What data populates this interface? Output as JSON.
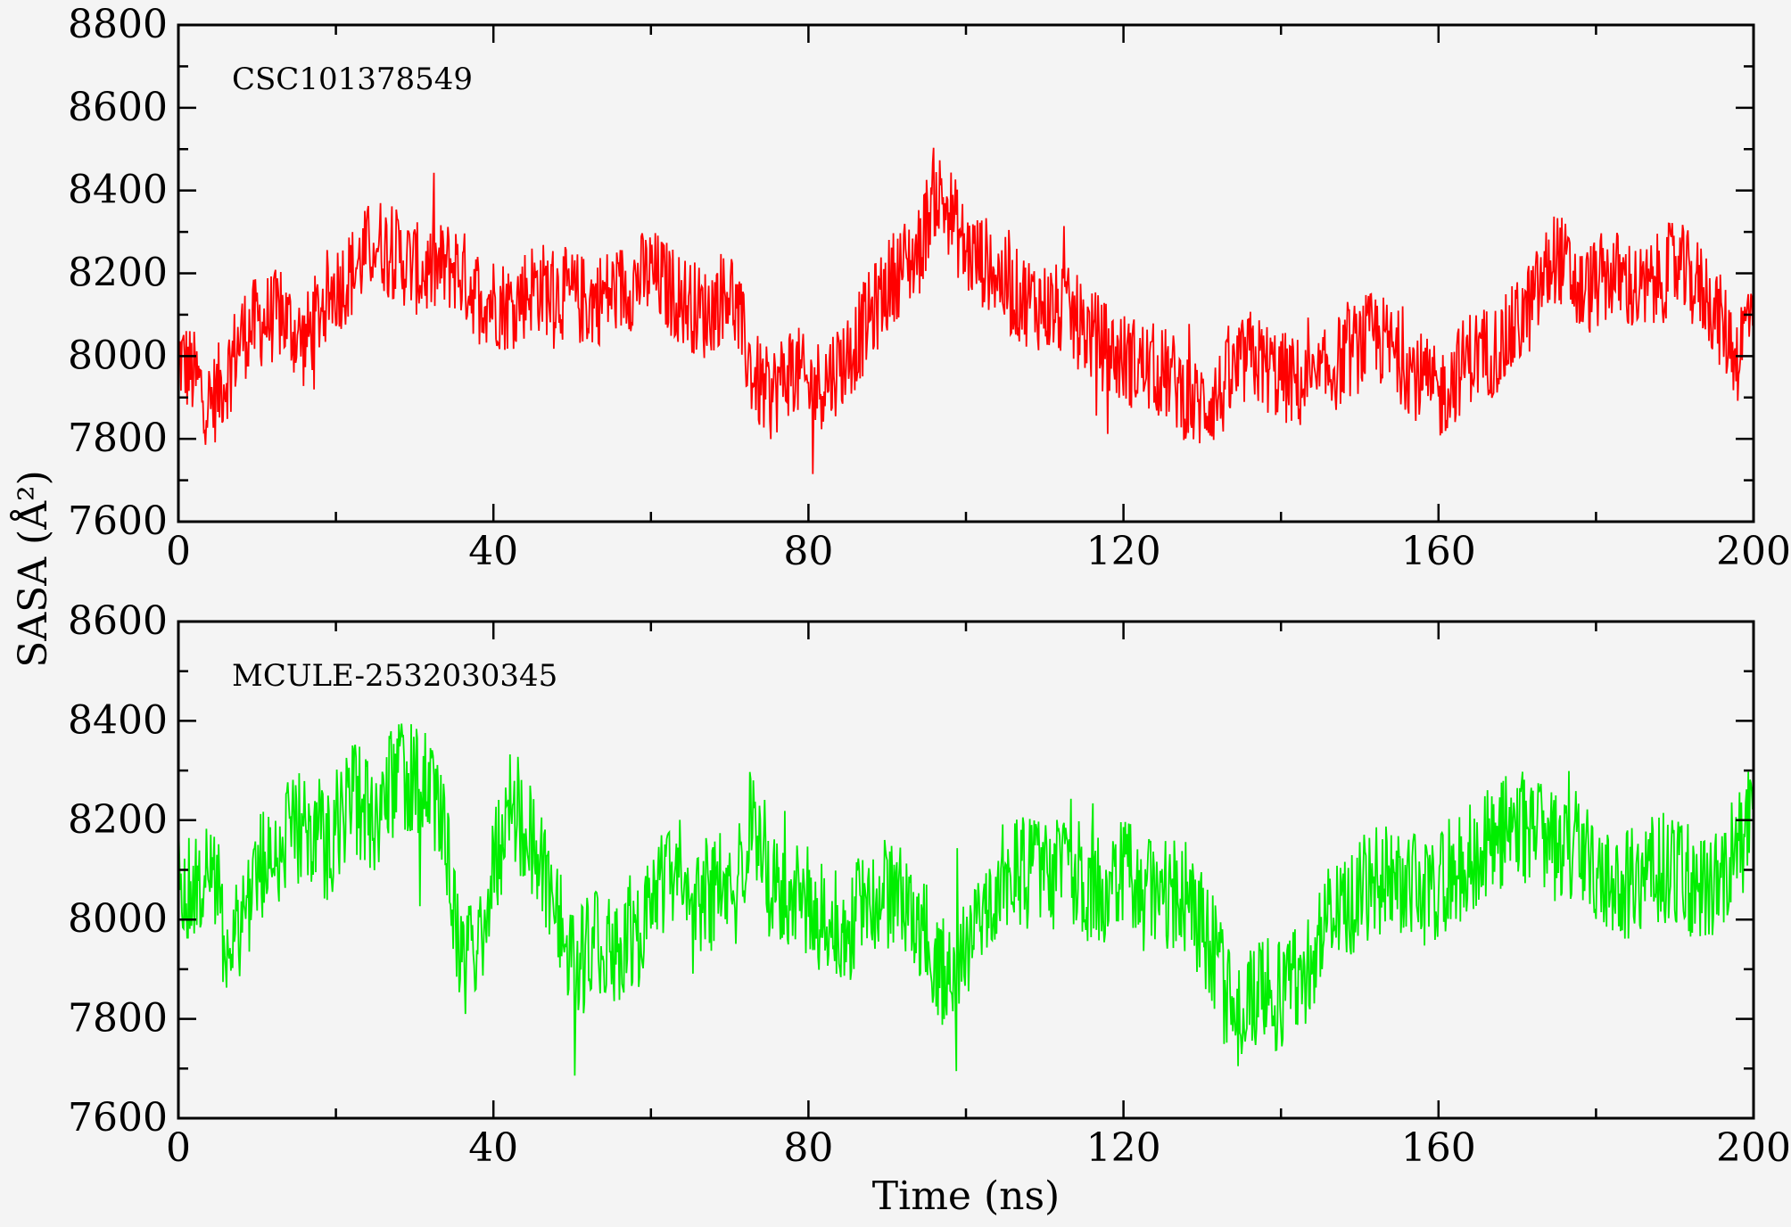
{
  "chart_data": [
    {
      "type": "line",
      "annotation": "CSC101378549",
      "color": "#ff0000",
      "xlabel": "",
      "ylabel": "SASA (Å²)",
      "xlim": [
        0,
        200
      ],
      "ylim": [
        7600,
        8800
      ],
      "xticks": [
        "0",
        "40",
        "80",
        "120",
        "160",
        "200"
      ],
      "yticks": [
        "7600",
        "7800",
        "8000",
        "8200",
        "8400",
        "8600",
        "8800"
      ],
      "series": [
        {
          "x": [
            0,
            2,
            4,
            6,
            8,
            10,
            13,
            16,
            19,
            22,
            25,
            28,
            31,
            35,
            38,
            42,
            45,
            49,
            52,
            56,
            60,
            63,
            67,
            70,
            73,
            75,
            78,
            80,
            82,
            85,
            88,
            91,
            94,
            96,
            98,
            100,
            103,
            106,
            110,
            113,
            116,
            119,
            122,
            126,
            129,
            132,
            136,
            140,
            144,
            148,
            152,
            156,
            160,
            164,
            168,
            172,
            175,
            178,
            182,
            186,
            190,
            194,
            198,
            200
          ],
          "y": [
            8000,
            7950,
            7880,
            7950,
            8050,
            8080,
            8100,
            8030,
            8150,
            8200,
            8280,
            8240,
            8200,
            8220,
            8150,
            8120,
            8170,
            8150,
            8130,
            8160,
            8200,
            8150,
            8100,
            8170,
            7950,
            7900,
            7980,
            7920,
            7940,
            8000,
            8100,
            8200,
            8250,
            8400,
            8350,
            8250,
            8220,
            8150,
            8120,
            8100,
            8050,
            8000,
            7980,
            7950,
            7880,
            7900,
            8000,
            7950,
            7920,
            8000,
            8050,
            7980,
            7900,
            8000,
            8020,
            8130,
            8250,
            8150,
            8200,
            8150,
            8220,
            8150,
            8000,
            8150
          ]
        }
      ]
    },
    {
      "type": "line",
      "annotation": "MCULE-2532030345",
      "color": "#00ee00",
      "xlabel": "Time (ns)",
      "ylabel": "",
      "xlim": [
        0,
        200
      ],
      "ylim": [
        7600,
        8600
      ],
      "xticks": [
        "0",
        "40",
        "80",
        "120",
        "160",
        "200"
      ],
      "yticks": [
        "7600",
        "7800",
        "8000",
        "8200",
        "8400",
        "8600"
      ],
      "series": [
        {
          "x": [
            0,
            2,
            4,
            6,
            8,
            10,
            13,
            16,
            19,
            22,
            25,
            28,
            31,
            34,
            36,
            38,
            42,
            45,
            48,
            50,
            53,
            56,
            59,
            62,
            65,
            68,
            70,
            73,
            76,
            79,
            82,
            85,
            88,
            91,
            94,
            97,
            100,
            103,
            106,
            110,
            113,
            117,
            121,
            125,
            128,
            131,
            134,
            137,
            140,
            143,
            146,
            150,
            154,
            158,
            162,
            166,
            170,
            174,
            178,
            182,
            186,
            190,
            194,
            198,
            200
          ],
          "y": [
            8100,
            8050,
            8150,
            7950,
            8000,
            8100,
            8150,
            8200,
            8150,
            8250,
            8200,
            8300,
            8280,
            8150,
            7900,
            7950,
            8250,
            8150,
            8050,
            7900,
            7950,
            7950,
            7980,
            8100,
            8050,
            8050,
            8100,
            8200,
            8050,
            8050,
            8000,
            7980,
            8050,
            8050,
            8000,
            7900,
            7950,
            8050,
            8100,
            8080,
            8100,
            8050,
            8100,
            8050,
            8050,
            7950,
            7800,
            7850,
            7850,
            7900,
            8000,
            8050,
            8100,
            8050,
            8100,
            8150,
            8200,
            8150,
            8150,
            8050,
            8100,
            8100,
            8050,
            8150,
            8200
          ]
        }
      ]
    }
  ],
  "shared": {
    "ylabel": "SASA (Å²)",
    "xlabel": "Time (ns)"
  }
}
